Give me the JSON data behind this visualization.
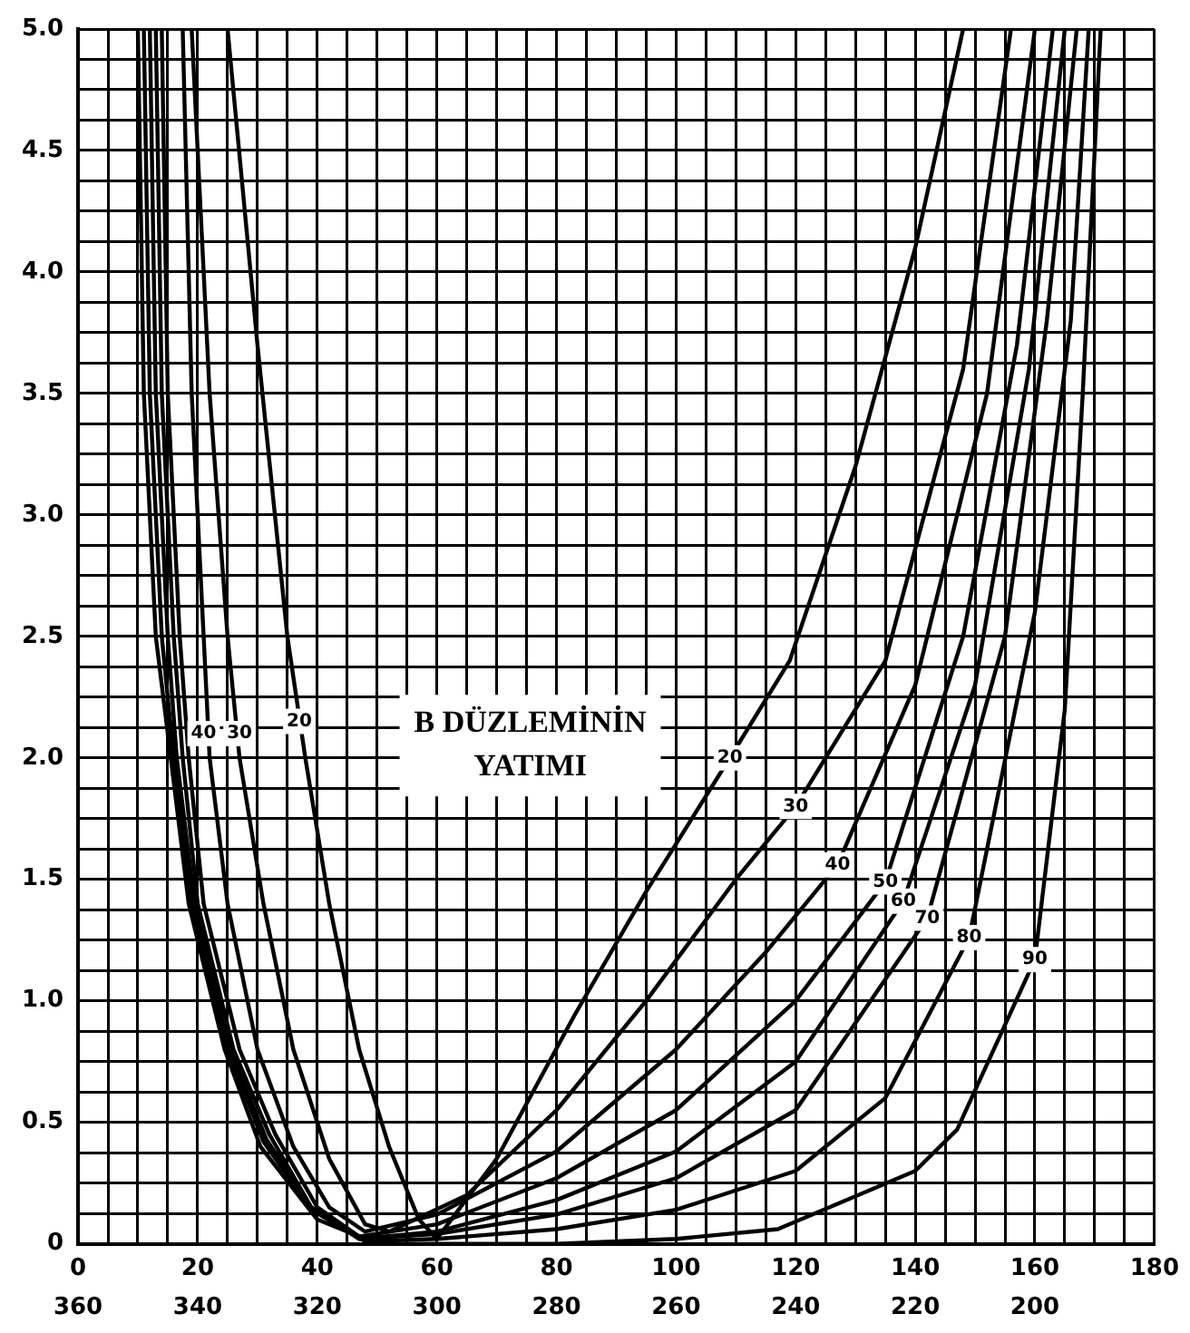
{
  "chart_data": {
    "type": "line",
    "xlim": [
      0,
      180
    ],
    "xticks": [
      0,
      {
        "value": 5,
        "label": null
      },
      {
        "value": 10,
        "label": null
      },
      {
        "value": 15,
        "label": null
      },
      20,
      {
        "value": 25,
        "label": null
      },
      {
        "value": 30,
        "label": null
      },
      {
        "value": 35,
        "label": null
      },
      40,
      {
        "value": 45,
        "label": null
      },
      {
        "value": 50,
        "label": null
      },
      {
        "value": 55,
        "label": null
      },
      60,
      {
        "value": 65,
        "label": null
      },
      {
        "value": 70,
        "label": null
      },
      {
        "value": 75,
        "label": null
      },
      80,
      {
        "value": 85,
        "label": null
      },
      {
        "value": 90,
        "label": null
      },
      {
        "value": 95,
        "label": null
      },
      100,
      {
        "value": 105,
        "label": null
      },
      {
        "value": 110,
        "label": null
      },
      {
        "value": 115,
        "label": null
      },
      120,
      {
        "value": 125,
        "label": null
      },
      {
        "value": 130,
        "label": null
      },
      {
        "value": 135,
        "label": null
      },
      140,
      {
        "value": 145,
        "label": null
      },
      {
        "value": 150,
        "label": null
      },
      {
        "value": 155,
        "label": null
      },
      160,
      {
        "value": 165,
        "label": null
      },
      {
        "value": 170,
        "label": null
      },
      {
        "value": 175,
        "label": null
      },
      180
    ],
    "x2lim": [
      360,
      180
    ],
    "x2ticks": [
      360,
      340,
      320,
      300,
      280,
      260,
      240,
      220,
      200
    ],
    "ylim": [
      0,
      5
    ],
    "yticks": [
      0,
      {
        "value": 0.125,
        "label": null
      },
      {
        "value": 0.25,
        "label": null
      },
      {
        "value": 0.375,
        "label": null
      },
      {
        "value": 0.5,
        "label": "0.5"
      },
      {
        "value": 0.625,
        "label": null
      },
      {
        "value": 0.75,
        "label": null
      },
      {
        "value": 0.875,
        "label": null
      },
      {
        "value": 1,
        "label": "1.0"
      },
      {
        "value": 1.125,
        "label": null
      },
      {
        "value": 1.25,
        "label": null
      },
      {
        "value": 1.375,
        "label": null
      },
      {
        "value": 1.5,
        "label": "1.5"
      },
      {
        "value": 1.625,
        "label": null
      },
      {
        "value": 1.75,
        "label": null
      },
      {
        "value": 1.875,
        "label": null
      },
      {
        "value": 2,
        "label": "2.0"
      },
      {
        "value": 2.125,
        "label": null
      },
      {
        "value": 2.25,
        "label": null
      },
      {
        "value": 2.375,
        "label": null
      },
      {
        "value": 2.5,
        "label": "2.5"
      },
      {
        "value": 2.625,
        "label": null
      },
      {
        "value": 2.75,
        "label": null
      },
      {
        "value": 2.875,
        "label": null
      },
      {
        "value": 3,
        "label": "3.0"
      },
      {
        "value": 3.125,
        "label": null
      },
      {
        "value": 3.25,
        "label": null
      },
      {
        "value": 3.375,
        "label": null
      },
      {
        "value": 3.5,
        "label": "3.5"
      },
      {
        "value": 3.625,
        "label": null
      },
      {
        "value": 3.75,
        "label": null
      },
      {
        "value": 3.875,
        "label": null
      },
      {
        "value": 4,
        "label": "4.0"
      },
      {
        "value": 4.125,
        "label": null
      },
      {
        "value": 4.25,
        "label": null
      },
      {
        "value": 4.375,
        "label": null
      },
      {
        "value": 4.5,
        "label": "4.5"
      },
      {
        "value": 4.625,
        "label": null
      },
      {
        "value": 4.75,
        "label": null
      },
      {
        "value": 4.875,
        "label": null
      },
      {
        "value": 5,
        "label": "5.0"
      }
    ],
    "grid": true,
    "legend": false,
    "marker": "none",
    "line_style": "solid",
    "series": [
      {
        "color": "#000000",
        "x": [
          25,
          30,
          35,
          38,
          42,
          47,
          52,
          57,
          60,
          70,
          83,
          95,
          109,
          119,
          130,
          140,
          148
        ],
        "values": [
          5,
          3.7,
          2.5,
          2,
          1.4,
          0.8,
          0.4,
          0.1,
          0.02,
          0.35,
          0.94,
          1.45,
          2,
          2.4,
          3.2,
          4.1,
          5
        ]
      },
      {
        "color": "#000000",
        "x": [
          19,
          22,
          25,
          27,
          31,
          36,
          42,
          48,
          52,
          65,
          80,
          95,
          110,
          120,
          135,
          148,
          156
        ],
        "values": [
          5,
          3.5,
          2.5,
          2,
          1.4,
          0.8,
          0.35,
          0.08,
          0.05,
          0.2,
          0.55,
          1,
          1.5,
          1.8,
          2.4,
          3.6,
          5
        ]
      },
      {
        "color": "#000000",
        "x": [
          17.5,
          19,
          21,
          22,
          25,
          30,
          36,
          42,
          48,
          60,
          80,
          100,
          115,
          127,
          140,
          152,
          160
        ],
        "values": [
          5,
          3.5,
          2.5,
          2,
          1.4,
          0.8,
          0.4,
          0.15,
          0.05,
          0.12,
          0.38,
          0.8,
          1.2,
          1.56,
          2.3,
          3.5,
          5
        ]
      },
      {
        "color": "#000000",
        "x": [
          14,
          15,
          17,
          18.5,
          21,
          27,
          33,
          40,
          47,
          60,
          80,
          100,
          120,
          135,
          148,
          157,
          163
        ],
        "values": [
          5,
          3.5,
          2.5,
          2,
          1.4,
          0.8,
          0.45,
          0.15,
          0.03,
          0.08,
          0.27,
          0.55,
          1,
          1.49,
          2.5,
          3.7,
          5
        ]
      },
      {
        "color": "#000000",
        "x": [
          13,
          14,
          16,
          17.5,
          20,
          26,
          32,
          39,
          47,
          60,
          80,
          100,
          120,
          138,
          150,
          159,
          165
        ],
        "values": [
          5,
          3.5,
          2.5,
          2,
          1.4,
          0.8,
          0.45,
          0.15,
          0.02,
          0.05,
          0.18,
          0.38,
          0.75,
          1.41,
          2.3,
          3.6,
          5
        ]
      },
      {
        "color": "#000000",
        "x": [
          12,
          13,
          15,
          16.5,
          19.5,
          25.5,
          31.5,
          39,
          47,
          60,
          80,
          100,
          120,
          142,
          155,
          162,
          167
        ],
        "values": [
          5,
          3.5,
          2.5,
          2,
          1.4,
          0.8,
          0.43,
          0.15,
          0.02,
          0.04,
          0.12,
          0.27,
          0.55,
          1.34,
          2.5,
          3.8,
          5
        ]
      },
      {
        "color": "#000000",
        "x": [
          11,
          12,
          14,
          16,
          19,
          25,
          31,
          39,
          48,
          60,
          80,
          100,
          120,
          135,
          149,
          160,
          166,
          169
        ],
        "values": [
          5,
          3.5,
          2.5,
          2,
          1.4,
          0.8,
          0.42,
          0.14,
          0.01,
          0.02,
          0.06,
          0.14,
          0.3,
          0.6,
          1.26,
          2.6,
          3.8,
          5
        ]
      },
      {
        "color": "#000000",
        "x": [
          10,
          11,
          13,
          15.5,
          18.5,
          24.5,
          30.5,
          40,
          50,
          80,
          100,
          117,
          140,
          147,
          160,
          165,
          168,
          171
        ],
        "values": [
          5,
          3.5,
          2.5,
          2,
          1.4,
          0.8,
          0.4,
          0.1,
          0,
          0,
          0.02,
          0.06,
          0.3,
          0.47,
          1.17,
          2.2,
          3.5,
          5
        ]
      }
    ],
    "annotations": [
      "B DÜZLEMİNİN YATIMI",
      {
        "text": "40",
        "x": 21,
        "y": 2.1
      },
      {
        "text": "30",
        "x": 27,
        "y": 2.1
      },
      {
        "text": "20",
        "x": 37,
        "y": 2.15
      },
      {
        "text": "20",
        "x": 109,
        "y": 2
      },
      {
        "text": "30",
        "x": 120,
        "y": 1.8
      },
      {
        "text": "40",
        "x": 127,
        "y": 1.56
      },
      {
        "text": "50",
        "x": 135,
        "y": 1.49
      },
      {
        "text": "60",
        "x": 138,
        "y": 1.41
      },
      {
        "text": "70",
        "x": 142,
        "y": 1.34
      },
      {
        "text": "80",
        "x": 149,
        "y": 1.26
      },
      {
        "text": "90",
        "x": 160,
        "y": 1.17
      }
    ]
  }
}
